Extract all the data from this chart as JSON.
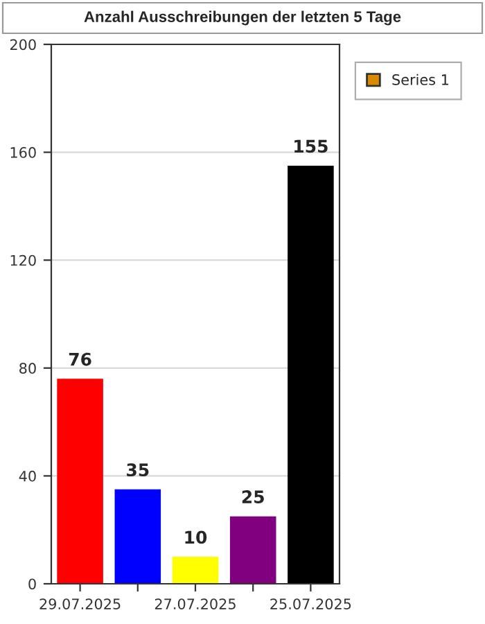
{
  "chart_data": {
    "type": "bar",
    "title": "Anzahl Ausschreibungen der letzten 5 Tage",
    "categories": [
      "29.07.2025",
      null,
      "27.07.2025",
      null,
      "25.07.2025"
    ],
    "series": [
      {
        "name": "Series 1",
        "color": "#d98a00",
        "colors": [
          "#ff0000",
          "#0000ff",
          "#ffff00",
          "#800080",
          "#000000"
        ],
        "values": [
          76,
          35,
          10,
          25,
          155
        ]
      }
    ],
    "ylim": [
      0,
      200
    ],
    "yticks": [
      0,
      40,
      80,
      120,
      160,
      200
    ],
    "grid": "y",
    "legend": "top right",
    "data_labels": true
  }
}
